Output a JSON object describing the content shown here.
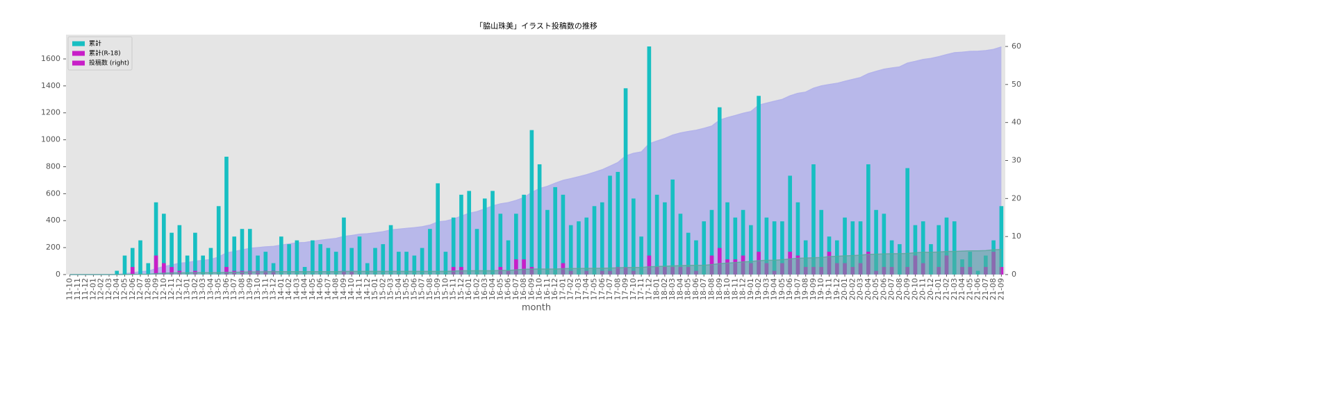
{
  "chart_data": {
    "type": "bar",
    "title": "「脇山珠美」イラスト投稿数の推移",
    "xlabel": "month",
    "categories": [
      "11-10",
      "11-11",
      "11-12",
      "12-01",
      "12-02",
      "12-03",
      "12-04",
      "12-05",
      "12-06",
      "12-07",
      "12-08",
      "12-09",
      "12-10",
      "12-11",
      "12-12",
      "13-01",
      "13-02",
      "13-03",
      "13-04",
      "13-05",
      "13-06",
      "13-07",
      "13-08",
      "13-09",
      "13-10",
      "13-11",
      "13-12",
      "14-01",
      "14-02",
      "14-03",
      "14-04",
      "14-05",
      "14-06",
      "14-07",
      "14-08",
      "14-09",
      "14-10",
      "14-11",
      "14-12",
      "15-01",
      "15-02",
      "15-03",
      "15-04",
      "15-05",
      "15-06",
      "15-07",
      "15-08",
      "15-09",
      "15-10",
      "15-11",
      "15-12",
      "16-01",
      "16-02",
      "16-03",
      "16-04",
      "16-05",
      "16-06",
      "16-07",
      "16-08",
      "16-09",
      "16-10",
      "16-11",
      "16-12",
      "17-01",
      "17-02",
      "17-03",
      "17-04",
      "17-05",
      "17-06",
      "17-07",
      "17-08",
      "17-09",
      "17-10",
      "17-11",
      "17-12",
      "18-01",
      "18-02",
      "18-03",
      "18-04",
      "18-05",
      "18-06",
      "18-07",
      "18-08",
      "18-09",
      "18-10",
      "18-11",
      "18-12",
      "19-01",
      "19-02",
      "19-03",
      "19-04",
      "19-05",
      "19-06",
      "19-07",
      "19-08",
      "19-09",
      "19-10",
      "19-11",
      "19-12",
      "20-01",
      "20-02",
      "20-03",
      "20-04",
      "20-05",
      "20-06",
      "20-07",
      "20-08",
      "20-09",
      "20-10",
      "20-11",
      "20-12",
      "21-01",
      "21-02",
      "21-03",
      "21-04",
      "21-05",
      "21-06",
      "21-07",
      "21-08",
      "21-09"
    ],
    "series": [
      {
        "kind": "area",
        "axis": "y",
        "color": "#b3b3ea",
        "values": [
          0,
          0,
          0,
          0,
          0,
          0,
          1,
          6,
          13,
          22,
          25,
          44,
          60,
          71,
          84,
          89,
          100,
          105,
          112,
          130,
          161,
          171,
          183,
          195,
          200,
          206,
          209,
          219,
          227,
          236,
          238,
          247,
          255,
          262,
          268,
          283,
          290,
          300,
          303,
          310,
          318,
          331,
          337,
          343,
          348,
          355,
          367,
          391,
          397,
          412,
          433,
          455,
          467,
          487,
          509,
          525,
          534,
          550,
          571,
          609,
          638,
          655,
          678,
          699,
          712,
          726,
          741,
          759,
          778,
          804,
          831,
          880,
          900,
          910,
          970,
          991,
          1010,
          1035,
          1051,
          1062,
          1071,
          1085,
          1102,
          1146,
          1165,
          1180,
          1197,
          1210,
          1257,
          1272,
          1286,
          1300,
          1326,
          1345,
          1354,
          1383,
          1400,
          1410,
          1419,
          1434,
          1448,
          1462,
          1491,
          1508,
          1524,
          1533,
          1541,
          1569,
          1582,
          1596,
          1604,
          1617,
          1632,
          1646,
          1650,
          1656,
          1657,
          1662,
          1671,
          1689
        ]
      },
      {
        "kind": "bar",
        "axis": "y2",
        "color": "#17bfc2",
        "values": [
          0,
          0,
          0,
          0,
          0,
          0,
          1,
          5,
          7,
          9,
          3,
          19,
          16,
          11,
          13,
          5,
          11,
          5,
          7,
          18,
          31,
          10,
          12,
          12,
          5,
          6,
          3,
          10,
          8,
          9,
          2,
          9,
          8,
          7,
          6,
          15,
          7,
          10,
          3,
          7,
          8,
          13,
          6,
          6,
          5,
          7,
          12,
          24,
          6,
          15,
          21,
          22,
          12,
          20,
          22,
          16,
          9,
          16,
          21,
          38,
          29,
          17,
          23,
          21,
          13,
          14,
          15,
          18,
          19,
          26,
          27,
          49,
          20,
          10,
          60,
          21,
          19,
          25,
          16,
          11,
          9,
          14,
          17,
          44,
          19,
          15,
          17,
          13,
          47,
          15,
          14,
          14,
          26,
          19,
          9,
          29,
          17,
          10,
          9,
          15,
          14,
          14,
          29,
          17,
          16,
          9,
          8,
          28,
          13,
          14,
          8,
          13,
          15,
          14,
          4,
          6,
          1,
          5,
          9,
          18
        ]
      },
      {
        "kind": "bar",
        "axis": "y2",
        "color": "#c81fc8",
        "values": [
          0,
          0,
          0,
          0,
          0,
          0,
          0,
          0,
          2,
          0,
          0,
          5,
          3,
          2,
          1,
          0,
          1,
          0,
          0,
          0,
          2,
          1,
          1,
          1,
          1,
          1,
          1,
          0,
          0,
          0,
          0,
          0,
          0,
          0,
          0,
          1,
          1,
          0,
          0,
          0,
          0,
          0,
          0,
          0,
          0,
          0,
          0,
          0,
          0,
          2,
          2,
          0,
          0,
          0,
          0,
          2,
          1,
          4,
          4,
          2,
          0,
          0,
          0,
          3,
          1,
          0,
          1,
          0,
          1,
          1,
          2,
          2,
          1,
          0,
          5,
          2,
          2,
          2,
          2,
          2,
          1,
          0,
          5,
          7,
          4,
          4,
          5,
          3,
          6,
          3,
          1,
          3,
          6,
          5,
          2,
          2,
          2,
          6,
          3,
          3,
          2,
          3,
          6,
          1,
          2,
          2,
          0,
          2,
          5,
          3,
          0,
          2,
          5,
          0,
          2,
          2,
          0,
          2,
          6,
          2
        ]
      },
      {
        "kind": "area",
        "axis": "y",
        "color": "#5aa89a",
        "values": [
          0,
          0,
          0,
          0,
          0,
          0,
          0,
          0,
          2,
          2,
          2,
          7,
          10,
          12,
          13,
          13,
          14,
          14,
          14,
          14,
          16,
          17,
          18,
          19,
          20,
          21,
          22,
          22,
          22,
          22,
          22,
          22,
          22,
          22,
          22,
          23,
          24,
          24,
          24,
          24,
          24,
          24,
          24,
          24,
          24,
          24,
          24,
          24,
          24,
          26,
          28,
          28,
          28,
          28,
          28,
          30,
          31,
          35,
          39,
          41,
          41,
          41,
          41,
          44,
          45,
          45,
          46,
          46,
          47,
          48,
          50,
          52,
          53,
          53,
          58,
          60,
          62,
          64,
          66,
          68,
          69,
          69,
          74,
          81,
          85,
          89,
          94,
          97,
          103,
          106,
          107,
          110,
          116,
          121,
          123,
          125,
          127,
          133,
          136,
          139,
          141,
          144,
          150,
          151,
          153,
          155,
          155,
          157,
          162,
          165,
          165,
          167,
          172,
          172,
          174,
          176,
          176,
          178,
          184,
          186
        ]
      }
    ],
    "legend": {
      "position": "upper left",
      "entries": [
        {
          "label": "累計",
          "color": "#17bfc2"
        },
        {
          "label": "累計(R-18)",
          "color": "#c81fc8"
        },
        {
          "label": "投稿数 (right)",
          "color": "#c81fc8"
        }
      ]
    },
    "ylim": [
      0,
      1780
    ],
    "yticks": [
      0,
      200,
      400,
      600,
      800,
      1000,
      1200,
      1400,
      1600
    ],
    "y2lim": [
      0,
      63.1
    ],
    "y2ticks": [
      0,
      10,
      20,
      30,
      40,
      50,
      60
    ],
    "grid": false
  }
}
